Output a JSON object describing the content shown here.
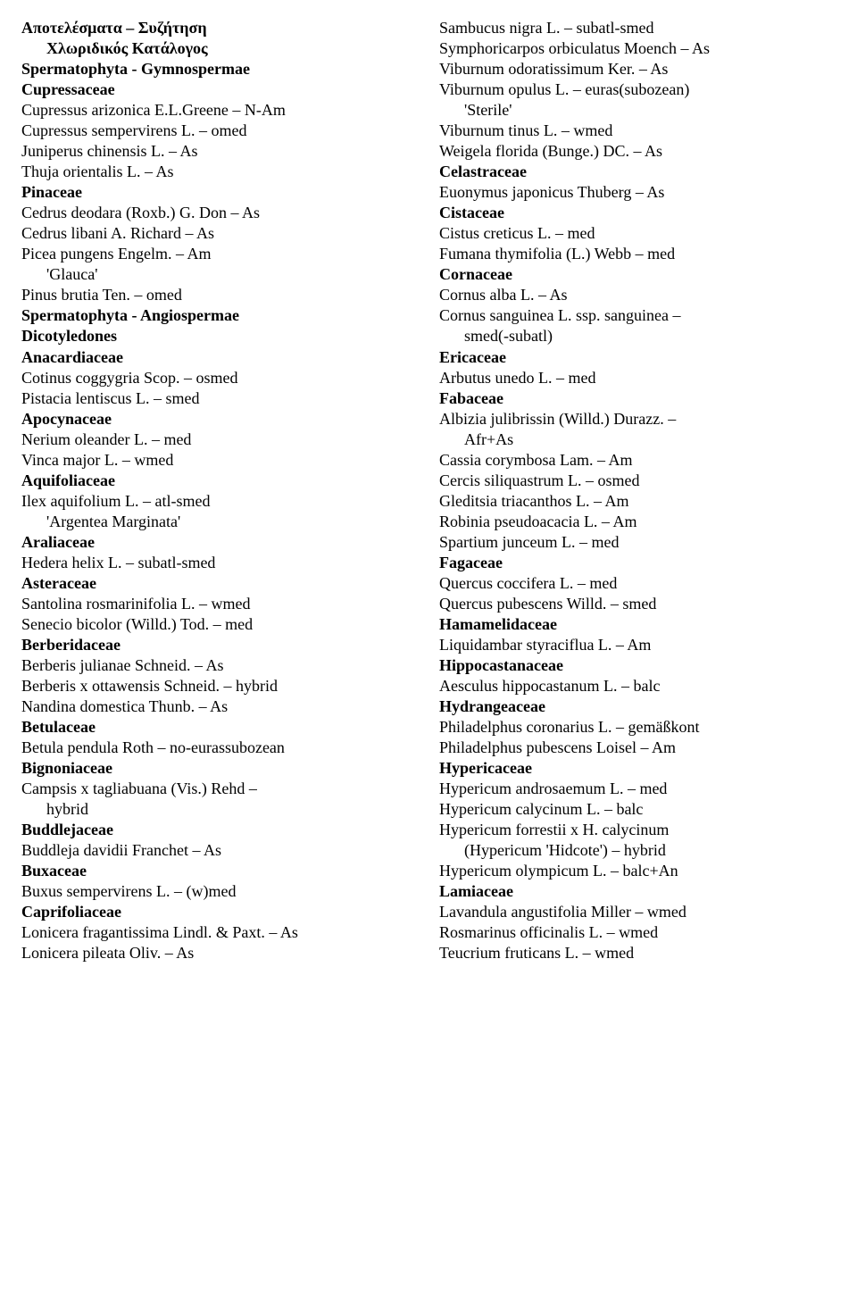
{
  "lines": [
    {
      "text": "Αποτελέσματα – Συζήτηση",
      "bold": true,
      "indent": false
    },
    {
      "text": "Χλωριδικός Κατάλογος",
      "bold": true,
      "indent": true
    },
    {
      "text": "Spermatophyta - Gymnospermae",
      "bold": true,
      "indent": false
    },
    {
      "text": "Cupressaceae",
      "bold": true,
      "indent": false
    },
    {
      "text": "Cupressus arizonica E.L.Greene – N-Am",
      "bold": false,
      "indent": false
    },
    {
      "text": "Cupressus sempervirens L. – omed",
      "bold": false,
      "indent": false
    },
    {
      "text": "Juniperus chinensis L. – As",
      "bold": false,
      "indent": false
    },
    {
      "text": "Thuja orientalis L. – As",
      "bold": false,
      "indent": false
    },
    {
      "text": "Pinaceae",
      "bold": true,
      "indent": false
    },
    {
      "text": "Cedrus deodara (Roxb.) G. Don – As",
      "bold": false,
      "indent": false
    },
    {
      "text": "Cedrus libani A. Richard – As",
      "bold": false,
      "indent": false
    },
    {
      "text": "Picea pungens Engelm. – Am",
      "bold": false,
      "indent": false
    },
    {
      "text": "'Glauca'",
      "bold": false,
      "indent": true
    },
    {
      "text": "Pinus brutia Ten. – omed",
      "bold": false,
      "indent": false
    },
    {
      "text": "Spermatophyta - Angiospermae",
      "bold": true,
      "indent": false
    },
    {
      "text": "Dicotyledones",
      "bold": true,
      "indent": false
    },
    {
      "text": "Anacardiaceae",
      "bold": true,
      "indent": false
    },
    {
      "text": "Cotinus coggygria Scop. – osmed",
      "bold": false,
      "indent": false
    },
    {
      "text": "Pistacia lentiscus L. – smed",
      "bold": false,
      "indent": false
    },
    {
      "text": "Apocynaceae",
      "bold": true,
      "indent": false
    },
    {
      "text": "Nerium oleander L. – med",
      "bold": false,
      "indent": false
    },
    {
      "text": "Vinca major L. – wmed",
      "bold": false,
      "indent": false
    },
    {
      "text": "Aquifoliaceae",
      "bold": true,
      "indent": false
    },
    {
      "text": "Ilex aquifolium L. – atl-smed",
      "bold": false,
      "indent": false
    },
    {
      "text": "'Argentea Marginata'",
      "bold": false,
      "indent": true
    },
    {
      "text": "Araliaceae",
      "bold": true,
      "indent": false
    },
    {
      "text": "Hedera helix L. – subatl-smed",
      "bold": false,
      "indent": false
    },
    {
      "text": "Asteraceae",
      "bold": true,
      "indent": false
    },
    {
      "text": "Santolina rosmarinifolia L. – wmed",
      "bold": false,
      "indent": false
    },
    {
      "text": "Senecio bicolor (Willd.) Tod. – med",
      "bold": false,
      "indent": false
    },
    {
      "text": "Berberidaceae",
      "bold": true,
      "indent": false
    },
    {
      "text": "Berberis julianae Schneid. – As",
      "bold": false,
      "indent": false
    },
    {
      "text": "Berberis x ottawensis Schneid. – hybrid",
      "bold": false,
      "indent": false
    },
    {
      "text": "Nandina domestica Thunb. – As",
      "bold": false,
      "indent": false
    },
    {
      "text": "Betulaceae",
      "bold": true,
      "indent": false
    },
    {
      "text": "Betula pendula Roth – no-eurassubozean",
      "bold": false,
      "indent": false
    },
    {
      "text": "Bignoniaceae",
      "bold": true,
      "indent": false
    },
    {
      "text": "Campsis x tagliabuana (Vis.) Rehd –",
      "bold": false,
      "indent": false
    },
    {
      "text": "hybrid",
      "bold": false,
      "indent": true
    },
    {
      "text": "Buddlejaceae",
      "bold": true,
      "indent": false
    },
    {
      "text": "Buddleja davidii Franchet – As",
      "bold": false,
      "indent": false
    },
    {
      "text": "Buxaceae",
      "bold": true,
      "indent": false
    },
    {
      "text": "Buxus sempervirens L. – (w)med",
      "bold": false,
      "indent": false
    },
    {
      "text": "Caprifoliaceae",
      "bold": true,
      "indent": false
    },
    {
      "text": "Lonicera fragantissima Lindl. & Paxt. – As",
      "bold": false,
      "indent": false
    },
    {
      "text": "Lonicera pileata Oliv. – As",
      "bold": false,
      "indent": false
    },
    {
      "text": "Sambucus nigra L. – subatl-smed",
      "bold": false,
      "indent": false
    },
    {
      "text": "Symphoricarpos orbiculatus Moench – As",
      "bold": false,
      "indent": false
    },
    {
      "text": "Viburnum odoratissimum Ker. – As",
      "bold": false,
      "indent": false
    },
    {
      "text": "Viburnum opulus L. – euras(subozean)",
      "bold": false,
      "indent": false
    },
    {
      "text": "'Sterile'",
      "bold": false,
      "indent": true
    },
    {
      "text": "Viburnum tinus L. – wmed",
      "bold": false,
      "indent": false
    },
    {
      "text": "Weigela florida (Bunge.) DC. – As",
      "bold": false,
      "indent": false
    },
    {
      "text": "Celastraceae",
      "bold": true,
      "indent": false
    },
    {
      "text": "Euonymus japonicus Thuberg – As",
      "bold": false,
      "indent": false
    },
    {
      "text": "Cistaceae",
      "bold": true,
      "indent": false
    },
    {
      "text": "Cistus creticus L. – med",
      "bold": false,
      "indent": false
    },
    {
      "text": "Fumana thymifolia (L.) Webb – med",
      "bold": false,
      "indent": false
    },
    {
      "text": "Cornaceae",
      "bold": true,
      "indent": false
    },
    {
      "text": "Cornus alba L. – As",
      "bold": false,
      "indent": false
    },
    {
      "text": "Cornus sanguinea L. ssp. sanguinea –",
      "bold": false,
      "indent": false
    },
    {
      "text": "smed(-subatl)",
      "bold": false,
      "indent": true
    },
    {
      "text": "Ericaceae",
      "bold": true,
      "indent": false
    },
    {
      "text": "Arbutus unedo L. – med",
      "bold": false,
      "indent": false
    },
    {
      "text": "Fabaceae",
      "bold": true,
      "indent": false
    },
    {
      "text": "Albizia julibrissin (Willd.) Durazz. –",
      "bold": false,
      "indent": false
    },
    {
      "text": "Afr+As",
      "bold": false,
      "indent": true
    },
    {
      "text": "Cassia corymbosa Lam. – Am",
      "bold": false,
      "indent": false
    },
    {
      "text": "Cercis siliquastrum L. – osmed",
      "bold": false,
      "indent": false
    },
    {
      "text": "Gleditsia triacanthos L. – Am",
      "bold": false,
      "indent": false
    },
    {
      "text": "Robinia pseudoacacia L. – Am",
      "bold": false,
      "indent": false
    },
    {
      "text": "Spartium junceum L. – med",
      "bold": false,
      "indent": false
    },
    {
      "text": "Fagaceae",
      "bold": true,
      "indent": false
    },
    {
      "text": "Quercus coccifera L. – med",
      "bold": false,
      "indent": false
    },
    {
      "text": "Quercus pubescens Willd. – smed",
      "bold": false,
      "indent": false
    },
    {
      "text": "Hamamelidaceae",
      "bold": true,
      "indent": false
    },
    {
      "text": "Liquidambar styraciflua L. – Am",
      "bold": false,
      "indent": false
    },
    {
      "text": "Hippocastanaceae",
      "bold": true,
      "indent": false
    },
    {
      "text": "Aesculus hippocastanum L. – balc",
      "bold": false,
      "indent": false
    },
    {
      "text": "Hydrangeaceae",
      "bold": true,
      "indent": false
    },
    {
      "text": "Philadelphus coronarius L. – gemäßkont",
      "bold": false,
      "indent": false
    },
    {
      "text": "Philadelphus pubescens Loisel – Am",
      "bold": false,
      "indent": false
    },
    {
      "text": "Hypericaceae",
      "bold": true,
      "indent": false
    },
    {
      "text": "Hypericum androsaemum L. – med",
      "bold": false,
      "indent": false
    },
    {
      "text": "Hypericum calycinum L. – balc",
      "bold": false,
      "indent": false
    },
    {
      "text": "Hypericum forrestii x H. calycinum",
      "bold": false,
      "indent": false
    },
    {
      "text": "(Hypericum 'Hidcote') – hybrid",
      "bold": false,
      "indent": true
    },
    {
      "text": "Hypericum olympicum L. – balc+An",
      "bold": false,
      "indent": false
    },
    {
      "text": "Lamiaceae",
      "bold": true,
      "indent": false
    },
    {
      "text": "Lavandula angustifolia Miller – wmed",
      "bold": false,
      "indent": false
    },
    {
      "text": "Rosmarinus officinalis L. – wmed",
      "bold": false,
      "indent": false
    },
    {
      "text": "Teucrium fruticans L. – wmed",
      "bold": false,
      "indent": false
    }
  ]
}
